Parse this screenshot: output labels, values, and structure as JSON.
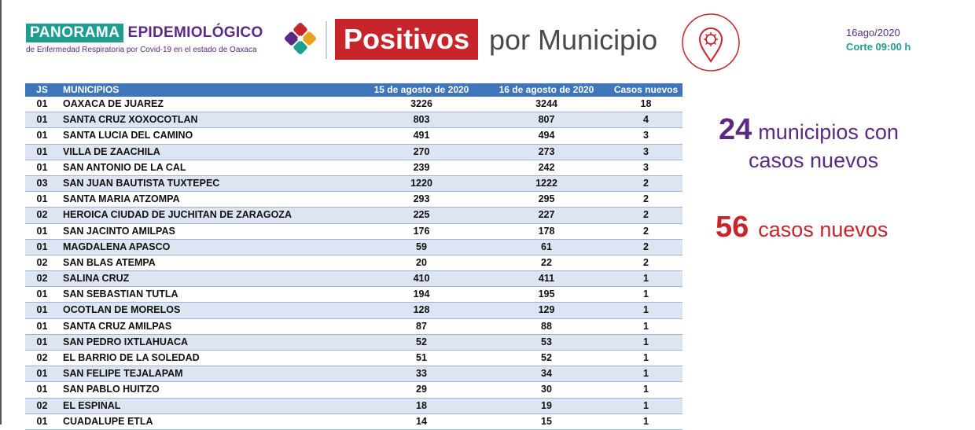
{
  "header": {
    "brand_part1": "PANORAMA",
    "brand_part2": "EPIDEMIOLÓGICO",
    "brand_subtitle": "de Enfermedad Respiratoria por Covid-19 en el estado de Oaxaca",
    "title_box": "Positivos",
    "title_rest": "por Municipio",
    "date": "16ago/2020",
    "corte": "Corte 09:00 h",
    "logo_icon": "mosaic-logo-icon",
    "pin_icon": "virus-location-pin-icon",
    "colors": {
      "teal": "#1f9e8f",
      "purple": "#5a2a82",
      "red": "#c8242b",
      "table_header": "#3f75b9"
    }
  },
  "table": {
    "headers": [
      "JS",
      "MUNICIPIOS",
      "15 de agosto de 2020",
      "16 de agosto de 2020",
      "Casos nuevos"
    ],
    "rows": [
      {
        "js": "01",
        "municipio": "OAXACA DE JUAREZ",
        "d15": "3226",
        "d16": "3244",
        "nuevos": "18"
      },
      {
        "js": "01",
        "municipio": "SANTA CRUZ XOXOCOTLAN",
        "d15": "803",
        "d16": "807",
        "nuevos": "4"
      },
      {
        "js": "01",
        "municipio": "SANTA LUCIA DEL CAMINO",
        "d15": "491",
        "d16": "494",
        "nuevos": "3"
      },
      {
        "js": "01",
        "municipio": "VILLA DE ZAACHILA",
        "d15": "270",
        "d16": "273",
        "nuevos": "3"
      },
      {
        "js": "01",
        "municipio": "SAN ANTONIO DE LA CAL",
        "d15": "239",
        "d16": "242",
        "nuevos": "3"
      },
      {
        "js": "03",
        "municipio": "SAN JUAN BAUTISTA TUXTEPEC",
        "d15": "1220",
        "d16": "1222",
        "nuevos": "2"
      },
      {
        "js": "01",
        "municipio": "SANTA MARIA ATZOMPA",
        "d15": "293",
        "d16": "295",
        "nuevos": "2"
      },
      {
        "js": "02",
        "municipio": "HEROICA CIUDAD DE JUCHITAN DE ZARAGOZA",
        "d15": "225",
        "d16": "227",
        "nuevos": "2"
      },
      {
        "js": "01",
        "municipio": "SAN JACINTO AMILPAS",
        "d15": "176",
        "d16": "178",
        "nuevos": "2"
      },
      {
        "js": "01",
        "municipio": "MAGDALENA APASCO",
        "d15": "59",
        "d16": "61",
        "nuevos": "2"
      },
      {
        "js": "02",
        "municipio": "SAN BLAS ATEMPA",
        "d15": "20",
        "d16": "22",
        "nuevos": "2"
      },
      {
        "js": "02",
        "municipio": "SALINA CRUZ",
        "d15": "410",
        "d16": "411",
        "nuevos": "1"
      },
      {
        "js": "01",
        "municipio": "SAN SEBASTIAN TUTLA",
        "d15": "194",
        "d16": "195",
        "nuevos": "1"
      },
      {
        "js": "01",
        "municipio": "OCOTLAN DE MORELOS",
        "d15": "128",
        "d16": "129",
        "nuevos": "1"
      },
      {
        "js": "01",
        "municipio": "SANTA CRUZ AMILPAS",
        "d15": "87",
        "d16": "88",
        "nuevos": "1"
      },
      {
        "js": "01",
        "municipio": "SAN PEDRO IXTLAHUACA",
        "d15": "52",
        "d16": "53",
        "nuevos": "1"
      },
      {
        "js": "02",
        "municipio": "EL BARRIO DE LA SOLEDAD",
        "d15": "51",
        "d16": "52",
        "nuevos": "1"
      },
      {
        "js": "01",
        "municipio": "SAN FELIPE TEJALAPAM",
        "d15": "33",
        "d16": "34",
        "nuevos": "1"
      },
      {
        "js": "01",
        "municipio": "SAN PABLO HUITZO",
        "d15": "29",
        "d16": "30",
        "nuevos": "1"
      },
      {
        "js": "02",
        "municipio": "EL ESPINAL",
        "d15": "18",
        "d16": "19",
        "nuevos": "1"
      },
      {
        "js": "01",
        "municipio": "CUADALUPE ETLA",
        "d15": "14",
        "d16": "15",
        "nuevos": "1"
      }
    ]
  },
  "summary": {
    "municipios_count": "24",
    "municipios_label1": "municipios con",
    "municipios_label2": "casos nuevos",
    "casos_count": "56",
    "casos_label": "casos nuevos"
  }
}
